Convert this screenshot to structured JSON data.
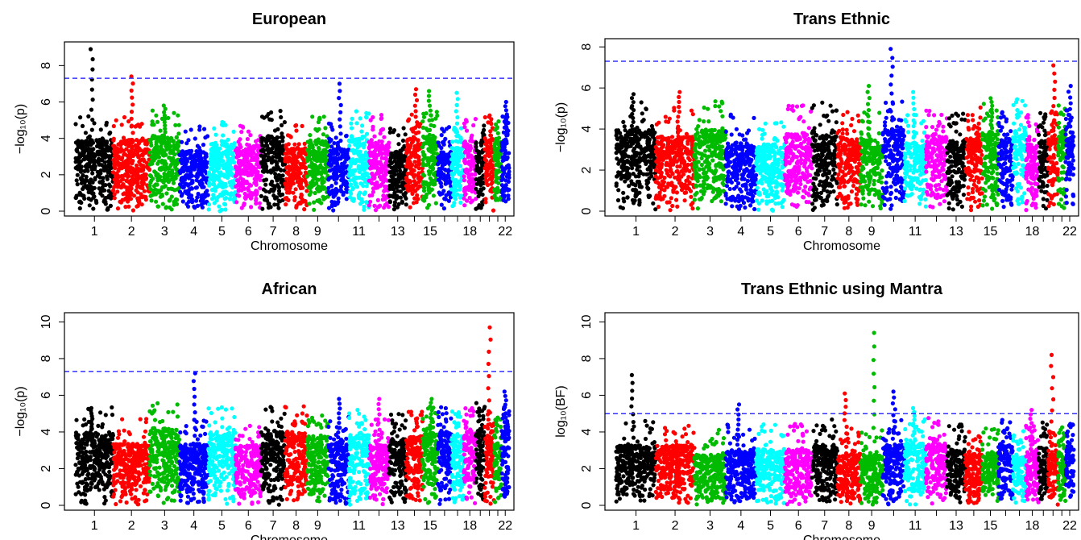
{
  "chart_data": [
    {
      "type": "scatter",
      "subtype": "manhattan",
      "title": "European",
      "xlabel": "Chromosome",
      "ylabel": "−log₁₀(p)",
      "ylim": [
        0,
        9
      ],
      "yticks": [
        0,
        2,
        4,
        6,
        8
      ],
      "threshold": 7.3,
      "x_tick_labels": [
        "1",
        "2",
        "3",
        "4",
        "5",
        "6",
        "7",
        "8",
        "9",
        "11",
        "13",
        "15",
        "18",
        "22"
      ],
      "peaks": [
        {
          "chromosome": 1,
          "value": 8.9
        },
        {
          "chromosome": 2,
          "value": 7.4
        },
        {
          "chromosome": 3,
          "value": 5.8
        },
        {
          "chromosome": 10,
          "value": 7.0
        },
        {
          "chromosome": 14,
          "value": 6.7
        },
        {
          "chromosome": 15,
          "value": 6.6
        },
        {
          "chromosome": 17,
          "value": 6.5
        },
        {
          "chromosome": 22,
          "value": 6.0
        }
      ]
    },
    {
      "type": "scatter",
      "subtype": "manhattan",
      "title": "Trans Ethnic",
      "xlabel": "Chromosome",
      "ylabel": "−log₁₀(p)",
      "ylim": [
        0,
        8
      ],
      "yticks": [
        0,
        2,
        4,
        6,
        8
      ],
      "threshold": 7.3,
      "x_tick_labels": [
        "1",
        "2",
        "3",
        "4",
        "5",
        "6",
        "7",
        "8",
        "9",
        "11",
        "13",
        "15",
        "18",
        "22"
      ],
      "peaks": [
        {
          "chromosome": 1,
          "value": 5.7
        },
        {
          "chromosome": 2,
          "value": 5.8
        },
        {
          "chromosome": 9,
          "value": 6.1
        },
        {
          "chromosome": 10,
          "value": 7.9
        },
        {
          "chromosome": 11,
          "value": 5.8
        },
        {
          "chromosome": 15,
          "value": 5.5
        },
        {
          "chromosome": 20,
          "value": 7.1
        },
        {
          "chromosome": 22,
          "value": 6.1
        }
      ]
    },
    {
      "type": "scatter",
      "subtype": "manhattan",
      "title": "African",
      "xlabel": "Chromosome",
      "ylabel": "−log₁₀(p)",
      "ylim": [
        0,
        10
      ],
      "yticks": [
        0,
        2,
        4,
        6,
        8,
        10
      ],
      "threshold": 7.3,
      "x_tick_labels": [
        "1",
        "2",
        "3",
        "4",
        "5",
        "6",
        "7",
        "8",
        "9",
        "11",
        "13",
        "15",
        "18",
        "22"
      ],
      "peaks": [
        {
          "chromosome": 1,
          "value": 5.3
        },
        {
          "chromosome": 4,
          "value": 7.2
        },
        {
          "chromosome": 10,
          "value": 5.8
        },
        {
          "chromosome": 12,
          "value": 5.8
        },
        {
          "chromosome": 15,
          "value": 5.8
        },
        {
          "chromosome": 20,
          "value": 9.7
        },
        {
          "chromosome": 22,
          "value": 6.2
        }
      ]
    },
    {
      "type": "scatter",
      "subtype": "manhattan",
      "title": "Trans Ethnic using Mantra",
      "xlabel": "Chromosome",
      "ylabel": "log₁₀(BF)",
      "ylim": [
        0,
        10
      ],
      "yticks": [
        0,
        2,
        4,
        6,
        8,
        10
      ],
      "threshold": 5.0,
      "x_tick_labels": [
        "1",
        "2",
        "3",
        "4",
        "5",
        "6",
        "7",
        "8",
        "9",
        "11",
        "13",
        "15",
        "18",
        "22"
      ],
      "peaks": [
        {
          "chromosome": 1,
          "value": 7.1
        },
        {
          "chromosome": 4,
          "value": 5.5
        },
        {
          "chromosome": 8,
          "value": 6.1
        },
        {
          "chromosome": 9,
          "value": 9.4
        },
        {
          "chromosome": 10,
          "value": 6.2
        },
        {
          "chromosome": 11,
          "value": 5.3
        },
        {
          "chromosome": 18,
          "value": 5.2
        },
        {
          "chromosome": 20,
          "value": 8.2
        }
      ]
    }
  ],
  "colors": {
    "chromosome_cycle": [
      "#000000",
      "#ff0000",
      "#00bb00",
      "#0000ff",
      "#00ffff",
      "#ff00ff"
    ],
    "threshold_line": "#3333ff",
    "axes": "#000000"
  }
}
